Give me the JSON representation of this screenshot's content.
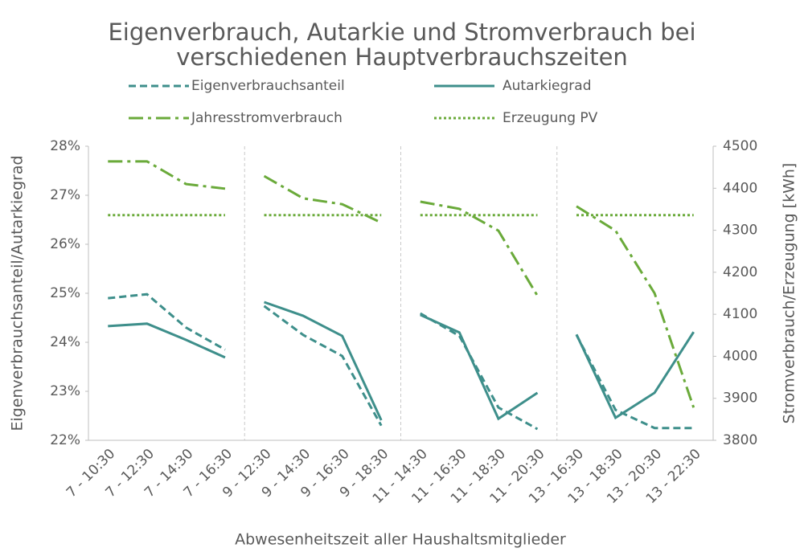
{
  "chart_data": {
    "type": "line",
    "title": [
      "Eigenverbrauch, Autarkie und Stromverbrauch bei",
      "verschiedenen Hauptverbrauchszeiten"
    ],
    "x_label": "Abwesenheitszeit aller Haushaltsmitglieder",
    "y_label": "Eigenverbrauchsanteil/Autarkiegrad",
    "y2_label": "Stromverbrauch/Erzeugung [kWh]",
    "categories": [
      [
        "7 - 10:30",
        "7 - 12:30",
        "7 - 14:30",
        "7 - 16:30"
      ],
      [
        "9 - 12:30",
        "9 - 14:30",
        "9 - 16:30",
        "9 - 18:30"
      ],
      [
        "11 - 14:30",
        "11 - 16:30",
        "11 - 18:30",
        "11 - 20:30"
      ],
      [
        "13 - 16:30",
        "13 - 18:30",
        "13 - 20:30",
        "13 - 22:30"
      ]
    ],
    "ylim": [
      22,
      28
    ],
    "yticks": [
      {
        "value": 22,
        "label": "22%"
      },
      {
        "value": 23,
        "label": "23%"
      },
      {
        "value": 24,
        "label": "24%"
      },
      {
        "value": 25,
        "label": "25%"
      },
      {
        "value": 26,
        "label": "26%"
      },
      {
        "value": 27,
        "label": "27%"
      },
      {
        "value": 28,
        "label": "28%"
      }
    ],
    "y2lim": [
      3800,
      4500
    ],
    "y2ticks": [
      3800,
      3900,
      4000,
      4100,
      4200,
      4300,
      4400,
      4500
    ],
    "series": [
      {
        "name": "Eigenverbrauchsanteil",
        "color": "#3e8f8b",
        "dash": "dashed",
        "axis": "y",
        "values": [
          [
            24.9,
            24.98,
            24.3,
            23.85
          ],
          [
            24.74,
            24.15,
            23.72,
            22.3
          ],
          [
            24.59,
            24.13,
            22.67,
            22.23
          ],
          [
            24.15,
            22.62,
            22.25,
            22.25
          ]
        ]
      },
      {
        "name": "Autarkiegrad",
        "color": "#3e8f8b",
        "dash": "solid",
        "axis": "y",
        "values": [
          [
            24.33,
            24.38,
            24.05,
            23.69
          ],
          [
            24.82,
            24.54,
            24.13,
            22.41
          ],
          [
            24.56,
            24.2,
            22.44,
            22.97
          ],
          [
            24.16,
            22.46,
            22.97,
            24.21
          ]
        ]
      },
      {
        "name": "Jahresstromverbrauch",
        "color": "#6aaa3a",
        "dash": "dashdot",
        "axis": "y2",
        "values": [
          [
            4464,
            4464,
            4410,
            4399
          ],
          [
            4429,
            4376,
            4362,
            4318
          ],
          [
            4368,
            4351,
            4299,
            4144
          ],
          [
            4357,
            4299,
            4150,
            3878
          ]
        ]
      },
      {
        "name": "Erzeugung PV",
        "color": "#6aaa3a",
        "dash": "dotted",
        "axis": "y2",
        "values": [
          [
            4336,
            4336,
            4336,
            4336
          ],
          [
            4336,
            4336,
            4336,
            4336
          ],
          [
            4336,
            4336,
            4336,
            4336
          ],
          [
            4336,
            4336,
            4336,
            4336
          ]
        ]
      }
    ]
  }
}
